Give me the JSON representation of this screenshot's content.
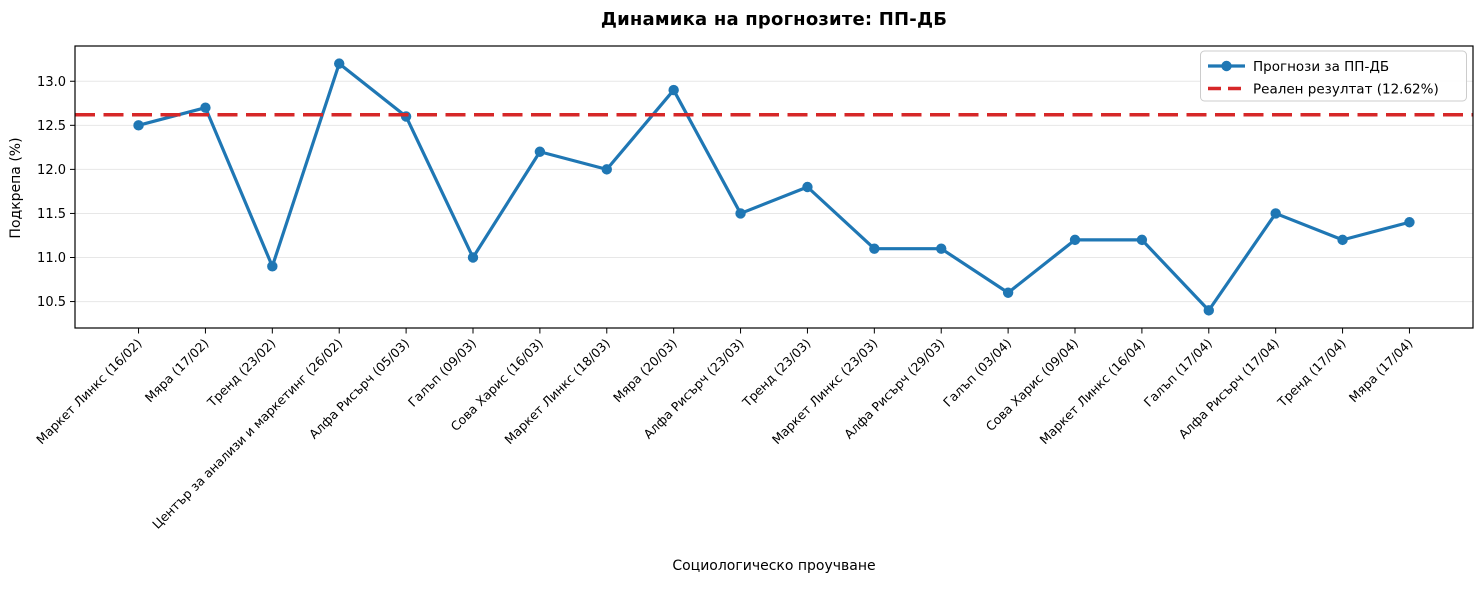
{
  "chart_data": {
    "type": "line",
    "title": "Динамика на прогнозите: ПП-ДБ",
    "xlabel": "Социологическо проучване",
    "ylabel": "Подкрепа (%)",
    "categories": [
      "Маркет Линкс (16/02)",
      "Мяра (17/02)",
      "Тренд (23/02)",
      "Център за анализи и маркетинг (26/02)",
      "Алфа Рисърч (05/03)",
      "Галъп (09/03)",
      "Сова Харис (16/03)",
      "Маркет Линкс (18/03)",
      "Мяра (20/03)",
      "Алфа Рисърч (23/03)",
      "Тренд (23/03)",
      "Маркет Линкс (23/03)",
      "Алфа Рисърч (29/03)",
      "Галъп (03/04)",
      "Сова Харис (09/04)",
      "Маркет Линкс (16/04)",
      "Галъп (17/04)",
      "Алфа Рисърч (17/04)",
      "Тренд (17/04)",
      "Мяра (17/04)"
    ],
    "series": [
      {
        "name": "Прогнози за ПП-ДБ",
        "color": "#1f77b4",
        "marker": "circle",
        "values": [
          12.5,
          12.7,
          10.9,
          13.2,
          12.6,
          11.0,
          12.2,
          12.0,
          12.9,
          11.5,
          11.8,
          11.1,
          11.1,
          10.6,
          11.2,
          11.2,
          10.4,
          11.5,
          11.2,
          11.4
        ]
      }
    ],
    "reference_line": {
      "label": "Реален резултат (12.62%)",
      "value": 12.62,
      "color": "#d62728",
      "style": "dashed"
    },
    "legend": {
      "position": "upper-right",
      "entries": [
        "Прогнози за ПП-ДБ",
        "Реален резултат (12.62%)"
      ]
    },
    "y_ticks": [
      10.5,
      11.0,
      11.5,
      12.0,
      12.5,
      13.0
    ],
    "ylim": [
      10.2,
      13.4
    ],
    "grid": "horizontal",
    "colors": {
      "grid": "#e7e7e7",
      "spine": "#000000",
      "legend_border": "#cccccc",
      "background": "#ffffff"
    }
  }
}
